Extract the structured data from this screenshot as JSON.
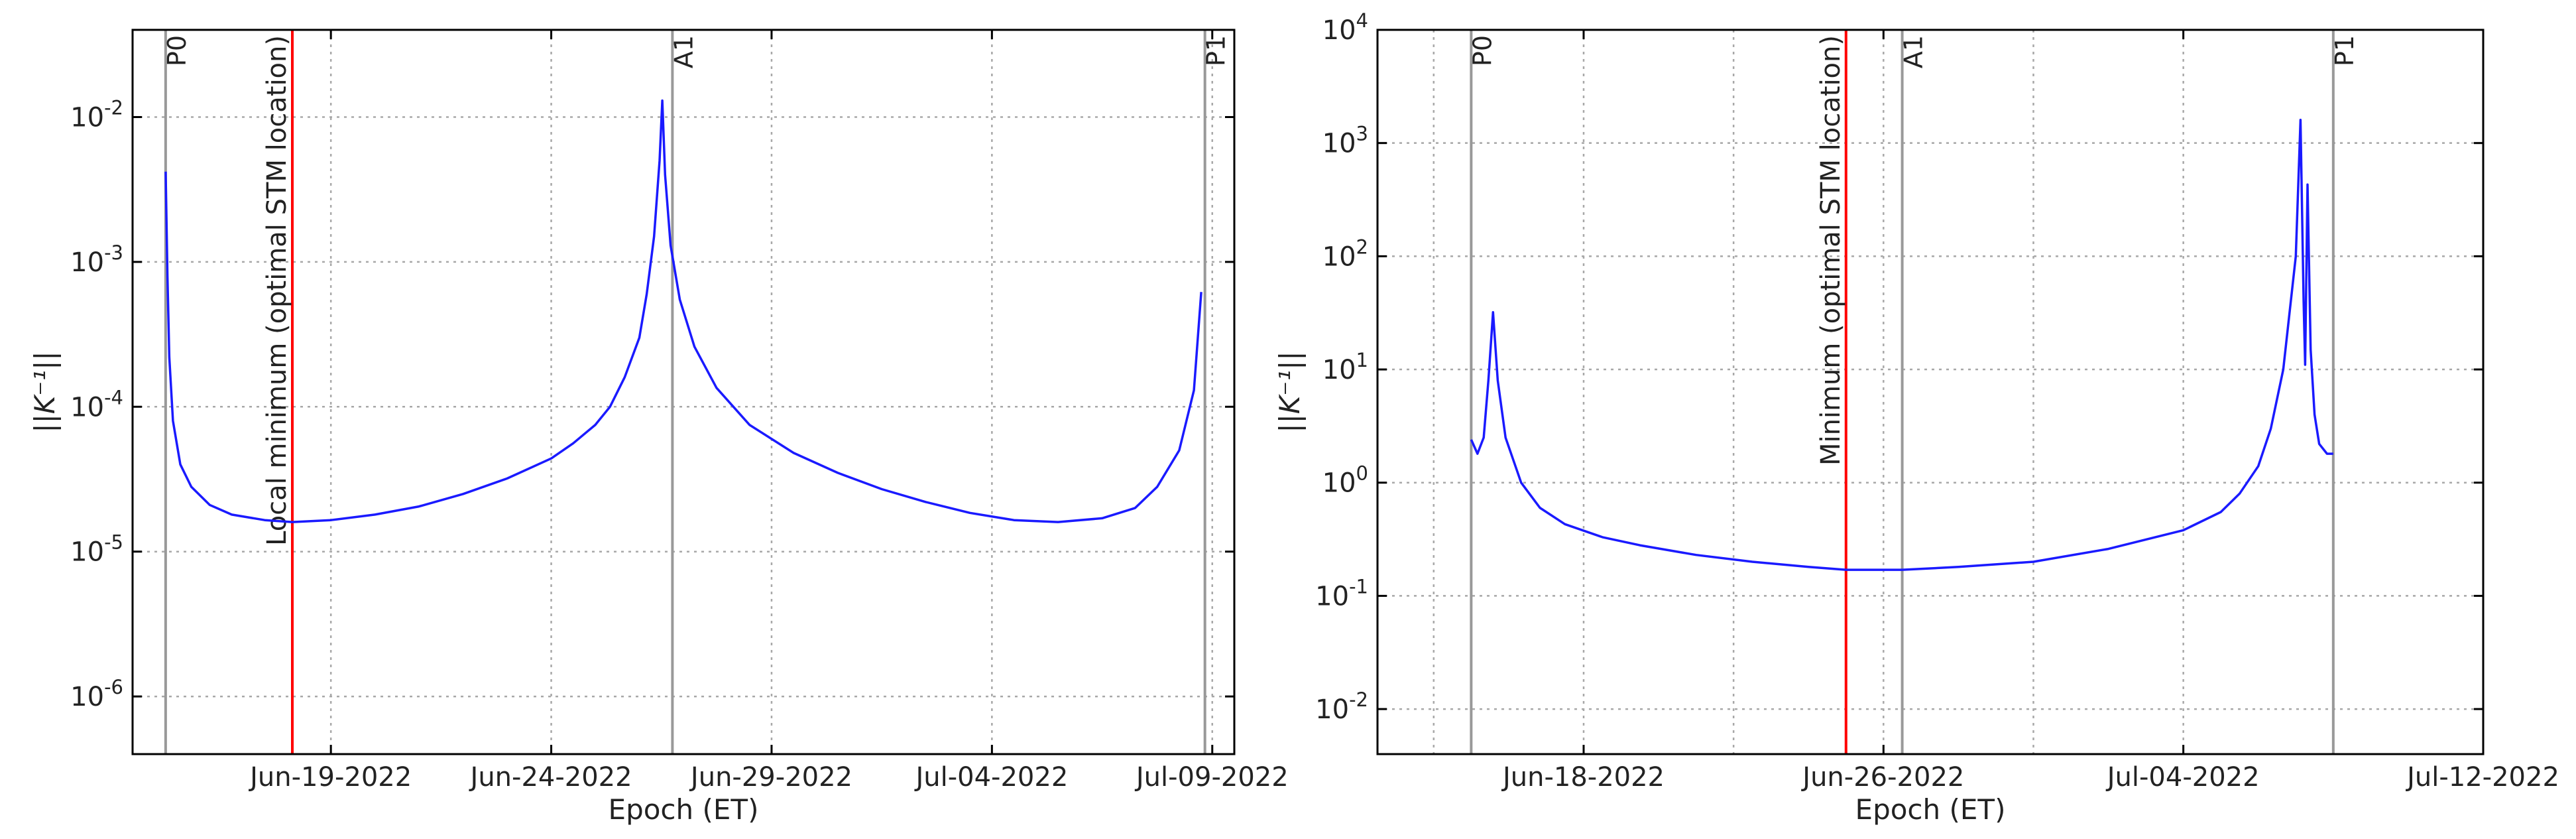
{
  "chart_data": [
    {
      "type": "line",
      "xlabel": "Epoch (ET)",
      "ylabel": "||K⁻¹||",
      "y_scale": "log",
      "grid": true,
      "x_domain": [
        "2022-06-14T12:00",
        "2022-07-09T12:00"
      ],
      "ylim": [
        4e-07,
        0.04
      ],
      "x_ticks": [
        {
          "x": "2022-06-19",
          "label": "Jun-19-2022"
        },
        {
          "x": "2022-06-24",
          "label": "Jun-24-2022"
        },
        {
          "x": "2022-06-29",
          "label": "Jun-29-2022"
        },
        {
          "x": "2022-07-04",
          "label": "Jul-04-2022"
        },
        {
          "x": "2022-07-09",
          "label": "Jul-09-2022"
        }
      ],
      "y_ticks": [
        {
          "y": 1e-06,
          "base": "10",
          "exp": "-6"
        },
        {
          "y": 1e-05,
          "base": "10",
          "exp": "-5"
        },
        {
          "y": 0.0001,
          "base": "10",
          "exp": "-4"
        },
        {
          "y": 0.001,
          "base": "10",
          "exp": "-3"
        },
        {
          "y": 0.01,
          "base": "10",
          "exp": "-2"
        }
      ],
      "vlines": [
        {
          "x": "2022-06-15T06:00",
          "label": "P0",
          "color": "#999999"
        },
        {
          "x": "2022-06-26T18:00",
          "label": "A1",
          "color": "#999999"
        },
        {
          "x": "2022-07-08T20:00",
          "label": "P1",
          "color": "#999999"
        }
      ],
      "marker": {
        "x": "2022-06-18T03:00",
        "label": "Local minimum (optimal STM location)",
        "color": "#ff0000"
      },
      "series": [
        {
          "color": "#1a1aff",
          "points": [
            [
              "2022-06-15T06:00",
              0.0042
            ],
            [
              "2022-06-15T07:00",
              0.0008
            ],
            [
              "2022-06-15T08:00",
              0.00022
            ],
            [
              "2022-06-15T10:00",
              8e-05
            ],
            [
              "2022-06-15T14:00",
              4e-05
            ],
            [
              "2022-06-15T20:00",
              2.8e-05
            ],
            [
              "2022-06-16T06:00",
              2.1e-05
            ],
            [
              "2022-06-16T18:00",
              1.8e-05
            ],
            [
              "2022-06-17T12:00",
              1.65e-05
            ],
            [
              "2022-06-18T03:00",
              1.6e-05
            ],
            [
              "2022-06-19T00:00",
              1.65e-05
            ],
            [
              "2022-06-20T00:00",
              1.8e-05
            ],
            [
              "2022-06-21T00:00",
              2.05e-05
            ],
            [
              "2022-06-22T00:00",
              2.5e-05
            ],
            [
              "2022-06-23T00:00",
              3.2e-05
            ],
            [
              "2022-06-24T00:00",
              4.4e-05
            ],
            [
              "2022-06-24T12:00",
              5.6e-05
            ],
            [
              "2022-06-25T00:00",
              7.5e-05
            ],
            [
              "2022-06-25T08:00",
              0.0001
            ],
            [
              "2022-06-25T16:00",
              0.00016
            ],
            [
              "2022-06-26T00:00",
              0.0003
            ],
            [
              "2022-06-26T04:00",
              0.0006
            ],
            [
              "2022-06-26T08:00",
              0.0015
            ],
            [
              "2022-06-26T11:00",
              0.005
            ],
            [
              "2022-06-26T12:30",
              0.013
            ],
            [
              "2022-06-26T14:00",
              0.004
            ],
            [
              "2022-06-26T17:00",
              0.0013
            ],
            [
              "2022-06-26T22:00",
              0.00055
            ],
            [
              "2022-06-27T06:00",
              0.00026
            ],
            [
              "2022-06-27T18:00",
              0.000135
            ],
            [
              "2022-06-28T12:00",
              7.5e-05
            ],
            [
              "2022-06-29T12:00",
              4.8e-05
            ],
            [
              "2022-06-30T12:00",
              3.5e-05
            ],
            [
              "2022-07-01T12:00",
              2.7e-05
            ],
            [
              "2022-07-02T12:00",
              2.2e-05
            ],
            [
              "2022-07-03T12:00",
              1.85e-05
            ],
            [
              "2022-07-04T12:00",
              1.65e-05
            ],
            [
              "2022-07-05T12:00",
              1.6e-05
            ],
            [
              "2022-07-06T12:00",
              1.7e-05
            ],
            [
              "2022-07-07T06:00",
              2e-05
            ],
            [
              "2022-07-07T18:00",
              2.8e-05
            ],
            [
              "2022-07-08T06:00",
              5e-05
            ],
            [
              "2022-07-08T14:00",
              0.00013
            ],
            [
              "2022-07-08T18:00",
              0.00062
            ]
          ]
        }
      ]
    },
    {
      "type": "line",
      "xlabel": "Epoch (ET)",
      "ylabel": "||K⁻¹||",
      "y_scale": "log",
      "grid": true,
      "x_domain": [
        "2022-06-12T12:00",
        "2022-07-12T00:00"
      ],
      "ylim": [
        0.004,
        10000
      ],
      "x_ticks": [
        {
          "x": "2022-06-18",
          "label": "Jun-18-2022"
        },
        {
          "x": "2022-06-26",
          "label": "Jun-26-2022"
        },
        {
          "x": "2022-07-04",
          "label": "Jul-04-2022"
        },
        {
          "x": "2022-07-12",
          "label": "Jul-12-2022"
        }
      ],
      "extra_grid_x": [
        "2022-06-14",
        "2022-06-22",
        "2022-06-30",
        "2022-07-08"
      ],
      "y_ticks": [
        {
          "y": 0.01,
          "base": "10",
          "exp": "-2"
        },
        {
          "y": 0.1,
          "base": "10",
          "exp": "-1"
        },
        {
          "y": 1,
          "base": "10",
          "exp": "0"
        },
        {
          "y": 10,
          "base": "10",
          "exp": "1"
        },
        {
          "y": 100,
          "base": "10",
          "exp": "2"
        },
        {
          "y": 1000,
          "base": "10",
          "exp": "3"
        },
        {
          "y": 10000,
          "base": "10",
          "exp": "4"
        }
      ],
      "vlines": [
        {
          "x": "2022-06-15T00:00",
          "label": "P0",
          "color": "#999999"
        },
        {
          "x": "2022-06-26T12:00",
          "label": "A1",
          "color": "#999999"
        },
        {
          "x": "2022-07-08T00:00",
          "label": "P1",
          "color": "#999999"
        }
      ],
      "marker": {
        "x": "2022-06-25T00:00",
        "label": "Minimum (optimal STM location)",
        "color": "#ff0000"
      },
      "series": [
        {
          "color": "#1a1aff",
          "points": [
            [
              "2022-06-15T00:00",
              2.4
            ],
            [
              "2022-06-15T04:00",
              1.8
            ],
            [
              "2022-06-15T08:00",
              2.5
            ],
            [
              "2022-06-15T11:00",
              8
            ],
            [
              "2022-06-15T14:00",
              32
            ],
            [
              "2022-06-15T17:00",
              8
            ],
            [
              "2022-06-15T22:00",
              2.5
            ],
            [
              "2022-06-16T08:00",
              1
            ],
            [
              "2022-06-16T20:00",
              0.6
            ],
            [
              "2022-06-17T12:00",
              0.43
            ],
            [
              "2022-06-18T12:00",
              0.33
            ],
            [
              "2022-06-19T12:00",
              0.28
            ],
            [
              "2022-06-21T00:00",
              0.23
            ],
            [
              "2022-06-22T12:00",
              0.2
            ],
            [
              "2022-06-24T00:00",
              0.18
            ],
            [
              "2022-06-25T00:00",
              0.17
            ],
            [
              "2022-06-26T12:00",
              0.17
            ],
            [
              "2022-06-28T00:00",
              0.18
            ],
            [
              "2022-06-30T00:00",
              0.2
            ],
            [
              "2022-07-02T00:00",
              0.26
            ],
            [
              "2022-07-04T00:00",
              0.38
            ],
            [
              "2022-07-05T00:00",
              0.55
            ],
            [
              "2022-07-05T12:00",
              0.8
            ],
            [
              "2022-07-06T00:00",
              1.4
            ],
            [
              "2022-07-06T08:00",
              3
            ],
            [
              "2022-07-06T16:00",
              10
            ],
            [
              "2022-07-07T00:00",
              100
            ],
            [
              "2022-07-07T03:00",
              1600
            ],
            [
              "2022-07-07T05:00",
              40
            ],
            [
              "2022-07-07T06:00",
              11
            ],
            [
              "2022-07-07T07:30",
              430
            ],
            [
              "2022-07-07T09:30",
              15
            ],
            [
              "2022-07-07T12:00",
              4
            ],
            [
              "2022-07-07T15:00",
              2.2
            ],
            [
              "2022-07-07T20:00",
              1.8
            ],
            [
              "2022-07-08T00:00",
              1.8
            ]
          ]
        }
      ]
    }
  ]
}
